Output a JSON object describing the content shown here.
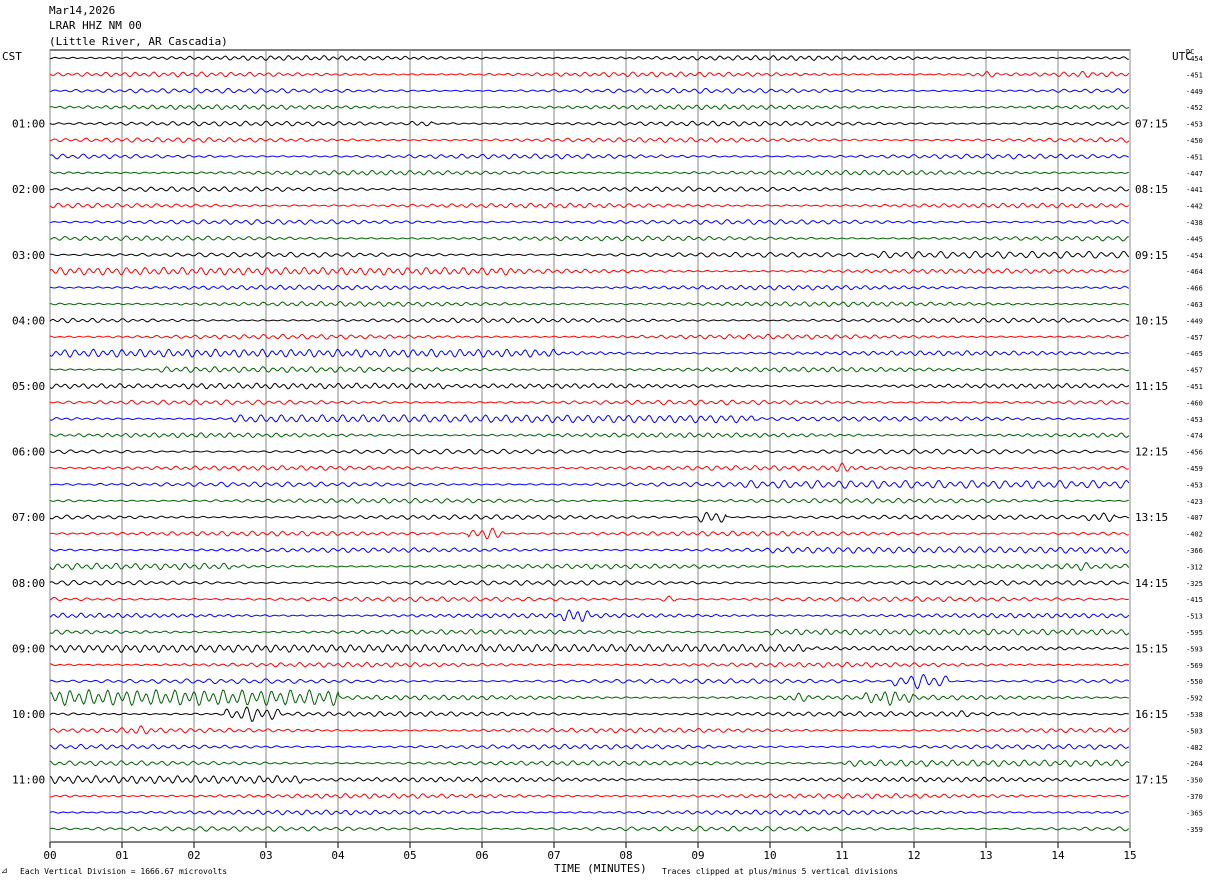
{
  "header": {
    "date": "Mar14,2026",
    "station": "LRAR HHZ NM 00",
    "location": "(Little River, AR Cascadia)"
  },
  "left_timezone": "CST",
  "right_timezone": "UTC",
  "dc_label": "DC",
  "footer": {
    "scale_note": "Each Vertical Division = 1666.67 microvolts",
    "clip_note": "Traces clipped at plus/minus 5 vertical divisions",
    "x_title": "TIME (MINUTES)"
  },
  "colors": [
    "#000000",
    "#ff0000",
    "#0000ff",
    "#006400"
  ],
  "chart_data": {
    "type": "line",
    "xlabel": "TIME (MINUTES)",
    "x_ticks": [
      "00",
      "01",
      "02",
      "03",
      "04",
      "05",
      "06",
      "07",
      "08",
      "09",
      "10",
      "11",
      "12",
      "13",
      "14",
      "15"
    ],
    "xlim": [
      0,
      15
    ],
    "minutes_per_trace": 15,
    "traces_per_hour": 4,
    "left_hour_labels": [
      "01:00",
      "02:00",
      "03:00",
      "04:00",
      "05:00",
      "06:00",
      "07:00",
      "08:00",
      "09:00",
      "10:00",
      "11:00"
    ],
    "right_hour_labels": [
      "07:15",
      "08:15",
      "09:15",
      "10:15",
      "11:15",
      "12:15",
      "13:15",
      "14:15",
      "15:15",
      "16:15",
      "17:15"
    ],
    "dc_offsets": [
      -454,
      -451,
      -449,
      -452,
      -453,
      -450,
      -451,
      -447,
      -441,
      -442,
      -438,
      -445,
      -454,
      -464,
      -466,
      -463,
      -449,
      -457,
      -465,
      -457,
      -451,
      -460,
      -453,
      -474,
      -456,
      -459,
      -453,
      -423,
      -407,
      -402,
      -366,
      -312,
      -325,
      -415,
      -513,
      -595,
      -593,
      -569,
      -550,
      -592,
      -538,
      -503,
      -482,
      -264,
      -350,
      -370,
      -365,
      -359
    ],
    "events": [
      {
        "trace": 1,
        "start": 12.8,
        "end": 13.2,
        "amp": 2.0
      },
      {
        "trace": 1,
        "start": 14.0,
        "end": 14.6,
        "amp": 2.2
      },
      {
        "trace": 4,
        "start": 5.0,
        "end": 5.3,
        "amp": 2.2
      },
      {
        "trace": 12,
        "start": 11.5,
        "end": 15.0,
        "amp": 2.2
      },
      {
        "trace": 13,
        "start": 0.0,
        "end": 6.5,
        "amp": 2.4
      },
      {
        "trace": 18,
        "start": 0.0,
        "end": 7.0,
        "amp": 2.5
      },
      {
        "trace": 19,
        "start": 1.5,
        "end": 4.5,
        "amp": 1.8
      },
      {
        "trace": 20,
        "start": 1.8,
        "end": 5.5,
        "amp": 1.8
      },
      {
        "trace": 22,
        "start": 2.5,
        "end": 9.8,
        "amp": 2.5
      },
      {
        "trace": 25,
        "start": 10.8,
        "end": 11.2,
        "amp": 3.2
      },
      {
        "trace": 26,
        "start": 9.5,
        "end": 15.0,
        "amp": 2.5
      },
      {
        "trace": 28,
        "start": 9.0,
        "end": 9.4,
        "amp": 4.5
      },
      {
        "trace": 28,
        "start": 14.4,
        "end": 14.8,
        "amp": 3.5
      },
      {
        "trace": 29,
        "start": 5.8,
        "end": 6.3,
        "amp": 4.0
      },
      {
        "trace": 30,
        "start": 10.0,
        "end": 15.0,
        "amp": 2.0
      },
      {
        "trace": 31,
        "start": 0.0,
        "end": 2.5,
        "amp": 2.0
      },
      {
        "trace": 31,
        "start": 14.1,
        "end": 14.5,
        "amp": 3.0
      },
      {
        "trace": 33,
        "start": 8.5,
        "end": 8.7,
        "amp": 2.0
      },
      {
        "trace": 34,
        "start": 7.1,
        "end": 7.5,
        "amp": 5.0
      },
      {
        "trace": 35,
        "start": 10.0,
        "end": 15.0,
        "amp": 1.8
      },
      {
        "trace": 36,
        "start": 0.0,
        "end": 10.5,
        "amp": 2.5
      },
      {
        "trace": 38,
        "start": 11.7,
        "end": 12.5,
        "amp": 5.0
      },
      {
        "trace": 39,
        "start": 0.0,
        "end": 4.0,
        "amp": 5.0
      },
      {
        "trace": 39,
        "start": 10.2,
        "end": 10.6,
        "amp": 3.0
      },
      {
        "trace": 39,
        "start": 11.3,
        "end": 12.0,
        "amp": 5.0
      },
      {
        "trace": 40,
        "start": 2.4,
        "end": 3.2,
        "amp": 5.0
      },
      {
        "trace": 40,
        "start": 12.4,
        "end": 12.8,
        "amp": 2.5
      },
      {
        "trace": 41,
        "start": 1.0,
        "end": 1.5,
        "amp": 3.0
      },
      {
        "trace": 43,
        "start": 11.0,
        "end": 15.0,
        "amp": 2.0
      },
      {
        "trace": 44,
        "start": 0.0,
        "end": 3.5,
        "amp": 2.5
      }
    ]
  }
}
